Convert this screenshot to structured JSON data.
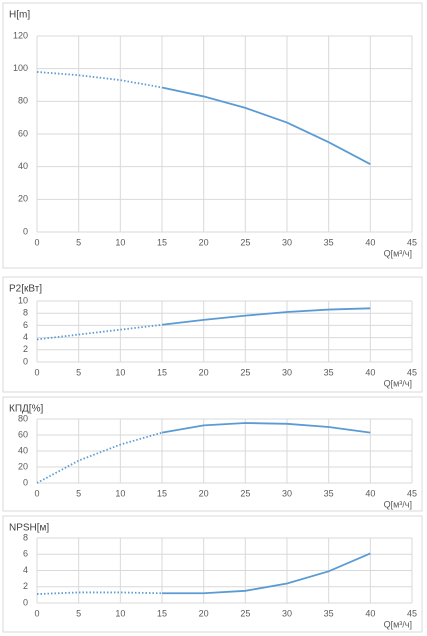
{
  "chart_data": [
    {
      "type": "line",
      "title": "H[m]",
      "x_label": "Q[м³/ч]",
      "x": [
        0,
        5,
        10,
        15,
        20,
        25,
        30,
        35,
        40
      ],
      "series": [
        {
          "color": "#5b9bd5",
          "line_style": "dotted",
          "values": [
            98,
            96,
            93,
            88.5,
            null,
            null,
            null,
            null,
            null
          ]
        },
        {
          "color": "#5b9bd5",
          "line_style": "solid",
          "values": [
            null,
            null,
            null,
            88.5,
            83,
            76,
            67,
            55,
            41.5
          ]
        }
      ],
      "xlim": [
        0,
        45
      ],
      "xticks": [
        0,
        5,
        10,
        15,
        20,
        25,
        30,
        35,
        40,
        45
      ],
      "ylim": [
        0,
        120
      ],
      "yticks": [
        0,
        20,
        40,
        60,
        80,
        100,
        120
      ],
      "grid": true
    },
    {
      "type": "line",
      "title": "P2[кВт]",
      "x_label": "Q[м³/ч]",
      "x": [
        0,
        5,
        10,
        15,
        20,
        25,
        30,
        35,
        40
      ],
      "series": [
        {
          "color": "#5b9bd5",
          "line_style": "dotted",
          "values": [
            3.7,
            4.5,
            5.3,
            6.1,
            null,
            null,
            null,
            null,
            null
          ]
        },
        {
          "color": "#5b9bd5",
          "line_style": "solid",
          "values": [
            null,
            null,
            null,
            6.1,
            6.9,
            7.6,
            8.2,
            8.6,
            8.8
          ]
        }
      ],
      "xlim": [
        0,
        45
      ],
      "xticks": [
        0,
        5,
        10,
        15,
        20,
        25,
        30,
        35,
        40,
        45
      ],
      "ylim": [
        0,
        10
      ],
      "yticks": [
        0,
        2,
        4,
        6,
        8,
        10
      ],
      "grid": true
    },
    {
      "type": "line",
      "title": "КПД[%]",
      "x_label": "Q[м³/ч]",
      "x": [
        0,
        5,
        10,
        15,
        20,
        25,
        30,
        35,
        40
      ],
      "series": [
        {
          "color": "#5b9bd5",
          "line_style": "dotted",
          "values": [
            0,
            28,
            48,
            63,
            null,
            null,
            null,
            null,
            null
          ]
        },
        {
          "color": "#5b9bd5",
          "line_style": "solid",
          "values": [
            null,
            null,
            null,
            63,
            72,
            75,
            74,
            70,
            63
          ]
        }
      ],
      "xlim": [
        0,
        45
      ],
      "xticks": [
        0,
        5,
        10,
        15,
        20,
        25,
        30,
        35,
        40,
        45
      ],
      "ylim": [
        0,
        80
      ],
      "yticks": [
        0,
        20,
        40,
        60,
        80
      ],
      "grid": true
    },
    {
      "type": "line",
      "title": "NPSH[м]",
      "x_label": "Q[м³/ч]",
      "x": [
        0,
        5,
        10,
        15,
        20,
        25,
        30,
        35,
        40
      ],
      "series": [
        {
          "color": "#5b9bd5",
          "line_style": "dotted",
          "values": [
            1.1,
            1.3,
            1.3,
            1.2,
            null,
            null,
            null,
            null,
            null
          ]
        },
        {
          "color": "#5b9bd5",
          "line_style": "solid",
          "values": [
            null,
            null,
            null,
            1.2,
            1.2,
            1.5,
            2.4,
            3.9,
            6.1
          ]
        }
      ],
      "xlim": [
        0,
        45
      ],
      "xticks": [
        0,
        5,
        10,
        15,
        20,
        25,
        30,
        35,
        40,
        45
      ],
      "ylim": [
        0,
        8
      ],
      "yticks": [
        0,
        2,
        4,
        6,
        8
      ],
      "grid": true
    }
  ]
}
